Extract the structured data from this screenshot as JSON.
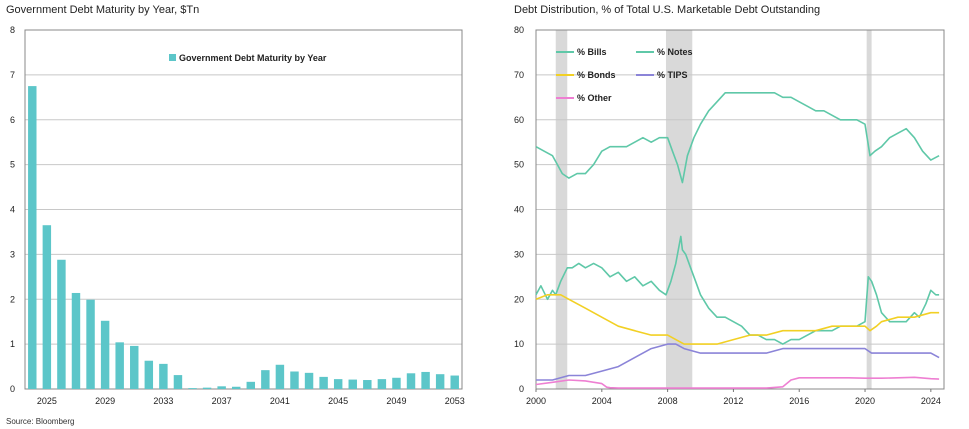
{
  "chart_data": [
    {
      "type": "bar",
      "title": "Government Debt Maturity by Year, $Tn",
      "legend": "Government Debt Maturity by Year",
      "legend_position": "top-right",
      "bar_color": "#5cc6c9",
      "ylim": [
        0,
        8
      ],
      "yticks": [
        "0",
        "1",
        "2",
        "3",
        "4",
        "5",
        "6",
        "7",
        "8"
      ],
      "categories": [
        2024,
        2025,
        2026,
        2027,
        2028,
        2029,
        2030,
        2031,
        2032,
        2033,
        2034,
        2035,
        2036,
        2037,
        2038,
        2039,
        2040,
        2041,
        2042,
        2043,
        2044,
        2045,
        2046,
        2047,
        2048,
        2049,
        2050,
        2051,
        2052,
        2053
      ],
      "xtick_labels": [
        "2025",
        "2029",
        "2033",
        "2037",
        "2041",
        "2045",
        "2049",
        "2053"
      ],
      "values": [
        6.75,
        3.65,
        2.88,
        2.14,
        1.99,
        1.52,
        1.04,
        0.96,
        0.63,
        0.56,
        0.31,
        0.02,
        0.03,
        0.06,
        0.05,
        0.16,
        0.42,
        0.54,
        0.39,
        0.36,
        0.27,
        0.22,
        0.21,
        0.2,
        0.22,
        0.25,
        0.35,
        0.38,
        0.33,
        0.3
      ]
    },
    {
      "type": "line",
      "title": "Debt Distribution, % of Total U.S. Marketable Debt Outstanding",
      "xlim": [
        2000,
        2024.8
      ],
      "ylim": [
        0,
        80
      ],
      "yticks": [
        "0",
        "10",
        "20",
        "30",
        "40",
        "50",
        "60",
        "70",
        "80"
      ],
      "xticks": [
        "2000",
        "2004",
        "2008",
        "2012",
        "2016",
        "2020",
        "2024"
      ],
      "shaded_periods": [
        [
          2001.2,
          2001.9
        ],
        [
          2007.9,
          2009.5
        ],
        [
          2020.1,
          2020.4
        ]
      ],
      "legend_position": "top-left",
      "series": [
        {
          "name": "% Bills",
          "color": "#5fc8a8",
          "x": [
            2000,
            2000.3,
            2000.7,
            2001,
            2001.2,
            2001.5,
            2001.9,
            2002.2,
            2002.6,
            2003,
            2003.5,
            2004,
            2004.5,
            2005,
            2005.5,
            2006,
            2006.5,
            2007,
            2007.5,
            2007.9,
            2008.2,
            2008.5,
            2008.8,
            2008.9,
            2009.1,
            2009.4,
            2009.7,
            2010,
            2010.5,
            2011,
            2011.5,
            2012,
            2012.5,
            2013,
            2013.5,
            2014,
            2014.5,
            2015,
            2015.5,
            2016,
            2016.5,
            2017,
            2017.5,
            2018,
            2018.5,
            2019,
            2019.5,
            2020,
            2020.2,
            2020.4,
            2020.7,
            2021,
            2021.5,
            2022,
            2022.5,
            2023,
            2023.3,
            2023.7,
            2024,
            2024.3,
            2024.5
          ],
          "y": [
            21,
            23,
            20,
            22,
            21,
            24,
            27,
            27,
            28,
            27,
            28,
            27,
            25,
            26,
            24,
            25,
            23,
            24,
            22,
            21,
            24,
            28,
            34,
            31,
            30,
            27,
            24,
            21,
            18,
            16,
            16,
            15,
            14,
            12,
            12,
            11,
            11,
            10,
            11,
            11,
            12,
            13,
            13,
            13,
            14,
            14,
            14,
            15,
            25,
            24,
            21,
            17,
            15,
            15,
            15,
            17,
            16,
            19,
            22,
            21,
            21
          ]
        },
        {
          "name": "% Notes",
          "color": "#5fc8a8",
          "x": [
            2000,
            2000.5,
            2001,
            2001.3,
            2001.6,
            2002,
            2002.5,
            2003,
            2003.5,
            2004,
            2004.5,
            2005,
            2005.5,
            2006,
            2006.5,
            2007,
            2007.5,
            2008,
            2008.3,
            2008.6,
            2008.9,
            2009.2,
            2009.6,
            2010,
            2010.5,
            2011,
            2011.5,
            2012,
            2012.5,
            2013,
            2013.5,
            2014,
            2014.5,
            2015,
            2015.5,
            2016,
            2016.5,
            2017,
            2017.5,
            2018,
            2018.5,
            2019,
            2019.5,
            2020,
            2020.3,
            2020.6,
            2021,
            2021.5,
            2022,
            2022.5,
            2023,
            2023.5,
            2024,
            2024.5
          ],
          "y": [
            54,
            53,
            52,
            50,
            48,
            47,
            48,
            48,
            50,
            53,
            54,
            54,
            54,
            55,
            56,
            55,
            56,
            56,
            53,
            50,
            46,
            52,
            56,
            59,
            62,
            64,
            66,
            66,
            66,
            66,
            66,
            66,
            66,
            65,
            65,
            64,
            63,
            62,
            62,
            61,
            60,
            60,
            60,
            59,
            52,
            53,
            54,
            56,
            57,
            58,
            56,
            53,
            51,
            52
          ]
        },
        {
          "name": "% Bonds",
          "color": "#f2d024",
          "x": [
            2000,
            2000.7,
            2001.5,
            2002,
            2003,
            2004,
            2005,
            2006,
            2007,
            2008,
            2008.5,
            2009,
            2010,
            2011,
            2012,
            2013,
            2014,
            2015,
            2016,
            2017,
            2018,
            2019,
            2020,
            2020.3,
            2020.7,
            2021,
            2022,
            2023,
            2024,
            2024.5
          ],
          "y": [
            20,
            21,
            21,
            20,
            18,
            16,
            14,
            13,
            12,
            12,
            11,
            10,
            10,
            10,
            11,
            12,
            12,
            13,
            13,
            13,
            14,
            14,
            14,
            13,
            14,
            15,
            16,
            16,
            17,
            17
          ]
        },
        {
          "name": "% TIPS",
          "color": "#8b84d8",
          "x": [
            2000,
            2001,
            2002,
            2003,
            2004,
            2005,
            2006,
            2007,
            2008,
            2008.5,
            2009,
            2010,
            2011,
            2012,
            2013,
            2014,
            2015,
            2016,
            2017,
            2018,
            2019,
            2020,
            2020.4,
            2021,
            2022,
            2023,
            2024,
            2024.5
          ],
          "y": [
            2,
            2,
            3,
            3,
            4,
            5,
            7,
            9,
            10,
            10,
            9,
            8,
            8,
            8,
            8,
            8,
            9,
            9,
            9,
            9,
            9,
            9,
            8,
            8,
            8,
            8,
            8,
            7
          ]
        },
        {
          "name": "% Other",
          "color": "#ee7fd2",
          "x": [
            2000,
            2001,
            2002,
            2003,
            2004,
            2004.3,
            2004.5,
            2005,
            2006,
            2007,
            2008,
            2009,
            2010,
            2011,
            2012,
            2013,
            2014,
            2015,
            2015.5,
            2016,
            2017,
            2018,
            2019,
            2020,
            2021,
            2022,
            2023,
            2024,
            2024.5
          ],
          "y": [
            1,
            1.5,
            2,
            1.8,
            1.2,
            0.4,
            0.3,
            0.2,
            0.2,
            0.2,
            0.2,
            0.2,
            0.2,
            0.2,
            0.2,
            0.2,
            0.2,
            0.5,
            2,
            2.5,
            2.5,
            2.5,
            2.5,
            2.4,
            2.4,
            2.5,
            2.6,
            2.3,
            2.2
          ]
        }
      ]
    }
  ],
  "source": "Source: Bloomberg"
}
